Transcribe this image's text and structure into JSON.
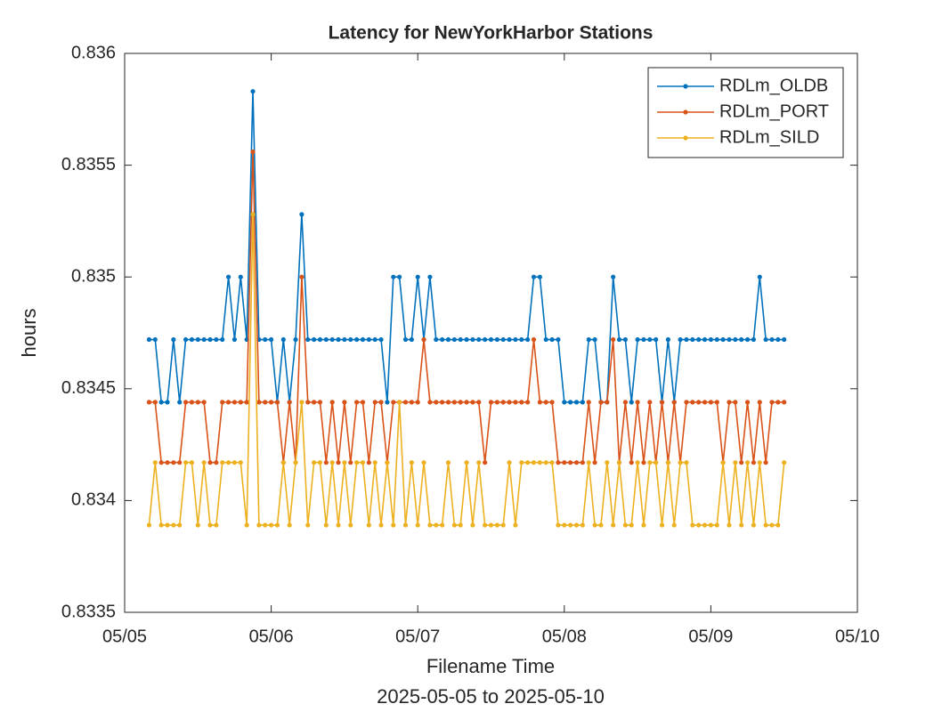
{
  "chart_data": {
    "type": "line",
    "title": "Latency for NewYorkHarbor Stations",
    "xlabel": [
      "Filename Time",
      "2025-05-05 to 2025-05-10"
    ],
    "ylabel": "hours",
    "x": [
      4,
      5,
      6,
      7,
      8,
      9,
      10,
      11,
      12,
      13,
      14,
      15,
      16,
      17,
      18,
      19,
      20,
      21,
      22,
      23,
      24,
      25,
      26,
      27,
      28,
      29,
      30,
      31,
      32,
      33,
      34,
      35,
      36,
      37,
      38,
      39,
      40,
      41,
      42,
      43,
      44,
      45,
      46,
      47,
      48,
      49,
      50,
      51,
      52,
      53,
      54,
      55,
      56,
      57,
      58,
      59,
      60,
      61,
      62,
      63,
      64,
      65,
      66,
      67,
      68,
      69,
      70,
      71,
      72,
      73,
      74,
      75,
      76,
      77,
      78,
      79,
      80,
      81,
      82,
      83,
      84,
      85,
      86,
      87,
      88,
      89,
      90,
      91,
      92,
      93,
      94,
      95,
      96,
      97,
      98,
      99,
      100,
      101,
      102,
      103,
      104,
      105,
      106,
      107,
      108
    ],
    "xlim": [
      0,
      120
    ],
    "xticks": [
      {
        "value": 0,
        "label": "05/05"
      },
      {
        "value": 24,
        "label": "05/06"
      },
      {
        "value": 48,
        "label": "05/07"
      },
      {
        "value": 72,
        "label": "05/08"
      },
      {
        "value": 96,
        "label": "05/09"
      },
      {
        "value": 120,
        "label": "05/10"
      }
    ],
    "ylim": [
      0.8335,
      0.836
    ],
    "yticks": [
      0.8335,
      0.834,
      0.8345,
      0.835,
      0.8355,
      0.836
    ],
    "legend": "upper right",
    "series": [
      {
        "name": "RDLm_OLDB",
        "color": "#0072BD",
        "values": [
          0.83472,
          0.83472,
          0.83444,
          0.83444,
          0.83472,
          0.83444,
          0.83472,
          0.83472,
          0.83472,
          0.83472,
          0.83472,
          0.83472,
          0.83472,
          0.835,
          0.83472,
          0.835,
          0.83472,
          0.83583,
          0.83472,
          0.83472,
          0.83472,
          0.83444,
          0.83472,
          0.83444,
          0.83472,
          0.83528,
          0.83472,
          0.83472,
          0.83472,
          0.83472,
          0.83472,
          0.83472,
          0.83472,
          0.83472,
          0.83472,
          0.83472,
          0.83472,
          0.83472,
          0.83472,
          0.83444,
          0.835,
          0.835,
          0.83472,
          0.83472,
          0.835,
          0.83472,
          0.835,
          0.83472,
          0.83472,
          0.83472,
          0.83472,
          0.83472,
          0.83472,
          0.83472,
          0.83472,
          0.83472,
          0.83472,
          0.83472,
          0.83472,
          0.83472,
          0.83472,
          0.83472,
          0.83472,
          0.835,
          0.835,
          0.83472,
          0.83472,
          0.83472,
          0.83444,
          0.83444,
          0.83444,
          0.83444,
          0.83472,
          0.83472,
          0.83444,
          0.83444,
          0.835,
          0.83472,
          0.83472,
          0.83444,
          0.83472,
          0.83472,
          0.83472,
          0.83472,
          0.83444,
          0.83472,
          0.83444,
          0.83472,
          0.83472,
          0.83472,
          0.83472,
          0.83472,
          0.83472,
          0.83472,
          0.83472,
          0.83472,
          0.83472,
          0.83472,
          0.83472,
          0.83472,
          0.835,
          0.83472,
          0.83472,
          0.83472,
          0.83472
        ]
      },
      {
        "name": "RDLm_PORT",
        "color": "#D95319",
        "values": [
          0.83444,
          0.83444,
          0.83417,
          0.83417,
          0.83417,
          0.83417,
          0.83444,
          0.83444,
          0.83444,
          0.83444,
          0.83417,
          0.83417,
          0.83444,
          0.83444,
          0.83444,
          0.83444,
          0.83444,
          0.83556,
          0.83444,
          0.83444,
          0.83444,
          0.83444,
          0.83417,
          0.83444,
          0.83417,
          0.835,
          0.83444,
          0.83444,
          0.83444,
          0.83417,
          0.83444,
          0.83417,
          0.83444,
          0.83417,
          0.83444,
          0.83444,
          0.83417,
          0.83444,
          0.83444,
          0.83417,
          0.83444,
          0.83444,
          0.83444,
          0.83444,
          0.83444,
          0.83472,
          0.83444,
          0.83444,
          0.83444,
          0.83444,
          0.83444,
          0.83444,
          0.83444,
          0.83444,
          0.83444,
          0.83417,
          0.83444,
          0.83444,
          0.83444,
          0.83444,
          0.83444,
          0.83444,
          0.83444,
          0.83472,
          0.83444,
          0.83444,
          0.83444,
          0.83417,
          0.83417,
          0.83417,
          0.83417,
          0.83417,
          0.83444,
          0.83417,
          0.83444,
          0.83444,
          0.83472,
          0.83417,
          0.83444,
          0.83417,
          0.83444,
          0.83417,
          0.83444,
          0.83417,
          0.83444,
          0.83417,
          0.83444,
          0.83417,
          0.83444,
          0.83444,
          0.83444,
          0.83444,
          0.83444,
          0.83444,
          0.83417,
          0.83444,
          0.83444,
          0.83417,
          0.83444,
          0.83417,
          0.83444,
          0.83417,
          0.83444,
          0.83444,
          0.83444
        ]
      },
      {
        "name": "RDLm_SILD",
        "color": "#EDB120",
        "values": [
          0.83389,
          0.83417,
          0.83389,
          0.83389,
          0.83389,
          0.83389,
          0.83417,
          0.83417,
          0.83389,
          0.83417,
          0.83389,
          0.83389,
          0.83417,
          0.83417,
          0.83417,
          0.83417,
          0.83389,
          0.83528,
          0.83389,
          0.83389,
          0.83389,
          0.83389,
          0.83417,
          0.83389,
          0.83417,
          0.83444,
          0.83389,
          0.83417,
          0.83417,
          0.83389,
          0.83417,
          0.83389,
          0.83417,
          0.83389,
          0.83417,
          0.83417,
          0.83389,
          0.83417,
          0.83389,
          0.83417,
          0.83389,
          0.83444,
          0.83389,
          0.83417,
          0.83389,
          0.83417,
          0.83389,
          0.83389,
          0.83389,
          0.83417,
          0.83389,
          0.83389,
          0.83417,
          0.83389,
          0.83417,
          0.83389,
          0.83389,
          0.83389,
          0.83389,
          0.83417,
          0.83389,
          0.83417,
          0.83417,
          0.83417,
          0.83417,
          0.83417,
          0.83417,
          0.83389,
          0.83389,
          0.83389,
          0.83389,
          0.83389,
          0.83417,
          0.83389,
          0.83389,
          0.83417,
          0.83389,
          0.83417,
          0.83389,
          0.83389,
          0.83417,
          0.83389,
          0.83417,
          0.83417,
          0.83389,
          0.83417,
          0.83389,
          0.83417,
          0.83417,
          0.83389,
          0.83389,
          0.83389,
          0.83389,
          0.83389,
          0.83417,
          0.83389,
          0.83417,
          0.83389,
          0.83417,
          0.83389,
          0.83417,
          0.83389,
          0.83389,
          0.83389,
          0.83417
        ]
      }
    ]
  }
}
